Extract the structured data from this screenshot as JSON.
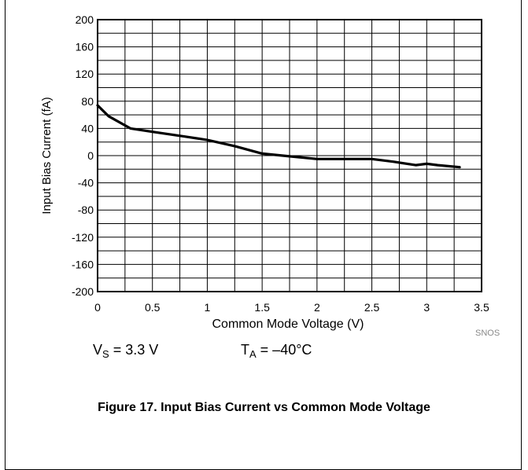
{
  "chart_data": {
    "type": "line",
    "title": "",
    "xlabel": "Common Mode Voltage (V)",
    "ylabel": "Input Bias Current (fA)",
    "xlim": [
      0,
      3.5
    ],
    "ylim": [
      -200,
      200
    ],
    "xticks": [
      "0",
      "0.5",
      "1",
      "1.5",
      "2",
      "2.5",
      "3",
      "3.5"
    ],
    "yticks": [
      "200",
      "160",
      "120",
      "80",
      "40",
      "0",
      "-40",
      "-80",
      "-120",
      "-160",
      "-200"
    ],
    "x_minor_step": 0.25,
    "y_minor_step": 20,
    "grid": true,
    "series": [
      {
        "x": [
          0,
          0.1,
          0.3,
          0.5,
          0.8,
          1.0,
          1.25,
          1.5,
          1.75,
          2.0,
          2.25,
          2.5,
          2.7,
          2.9,
          3.0,
          3.1,
          3.3
        ],
        "y": [
          74,
          58,
          40,
          35,
          28,
          23,
          14,
          3,
          -1,
          -5,
          -5,
          -5,
          -9,
          -14,
          -12,
          -14,
          -17
        ]
      }
    ],
    "watermark": "SNOS"
  },
  "conditions": {
    "vs_label": "V",
    "vs_sub": "S",
    "vs_value": " = 3.3 V",
    "ta_label": "T",
    "ta_sub": "A",
    "ta_value": " = –40°C"
  },
  "caption": "Figure 17. Input Bias Current vs Common Mode Voltage"
}
